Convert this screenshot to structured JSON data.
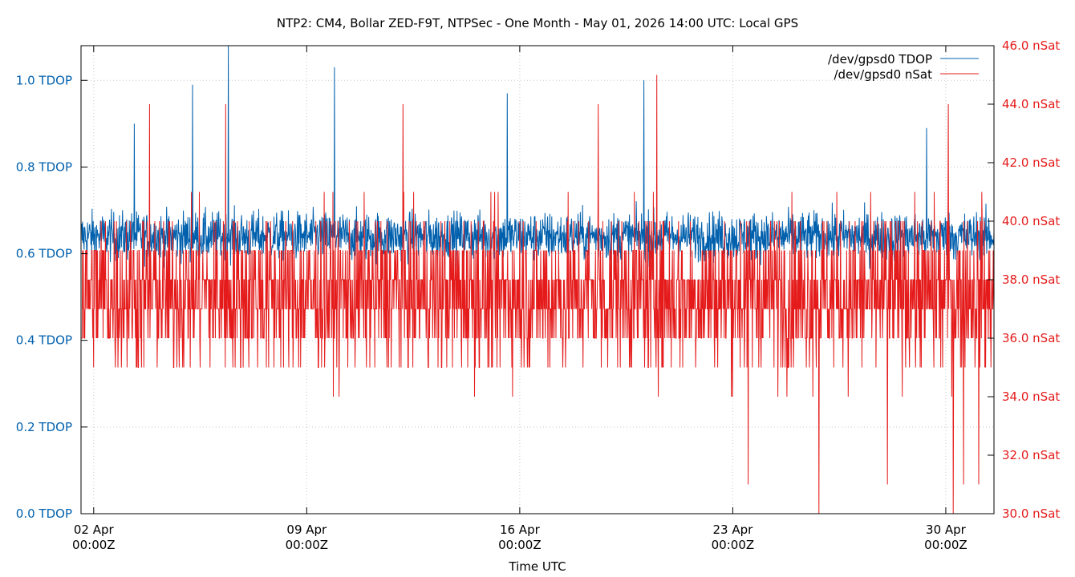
{
  "chart_data": {
    "type": "line",
    "title": "NTP2: CM4, Bollar ZED-F9T, NTPSec - One Month - May 01, 2026 14:00 UTC: Local GPS",
    "xlabel": "Time UTC",
    "x_range": [
      "2026-04-01T14:00Z",
      "2026-05-01T14:00Z"
    ],
    "x_ticks": [
      {
        "date": "2026-04-02T00:00Z",
        "line1": "02 Apr",
        "line2": "00:00Z"
      },
      {
        "date": "2026-04-09T00:00Z",
        "line1": "09 Apr",
        "line2": "00:00Z"
      },
      {
        "date": "2026-04-16T00:00Z",
        "line1": "16 Apr",
        "line2": "00:00Z"
      },
      {
        "date": "2026-04-23T00:00Z",
        "line1": "23 Apr",
        "line2": "00:00Z"
      },
      {
        "date": "2026-04-30T00:00Z",
        "line1": "30 Apr",
        "line2": "00:00Z"
      }
    ],
    "y_left": {
      "range": [
        0,
        1.08
      ],
      "ticks": [
        {
          "value": 0.0,
          "label": "0.0 TDOP"
        },
        {
          "value": 0.2,
          "label": "0.2 TDOP"
        },
        {
          "value": 0.4,
          "label": "0.4 TDOP"
        },
        {
          "value": 0.6,
          "label": "0.6 TDOP"
        },
        {
          "value": 0.8,
          "label": "0.8 TDOP"
        },
        {
          "value": 1.0,
          "label": "1.0 TDOP"
        }
      ]
    },
    "y_right": {
      "range": [
        30,
        46
      ],
      "ticks": [
        {
          "value": 30,
          "label": "30.0 nSat"
        },
        {
          "value": 32,
          "label": "32.0 nSat"
        },
        {
          "value": 34,
          "label": "34.0 nSat"
        },
        {
          "value": 36,
          "label": "36.0 nSat"
        },
        {
          "value": 38,
          "label": "38.0 nSat"
        },
        {
          "value": 40,
          "label": "40.0 nSat"
        },
        {
          "value": 42,
          "label": "42.0 nSat"
        },
        {
          "value": 44,
          "label": "44.0 nSat"
        },
        {
          "value": 46,
          "label": "46.0 nSat"
        }
      ]
    },
    "grid": true,
    "legend_position": "top-right",
    "series": [
      {
        "name": "/dev/gpsd0 TDOP",
        "axis": "left",
        "color": "#0060ad",
        "summary": {
          "typical_min": 0.55,
          "typical_max": 0.75,
          "mean": 0.64,
          "max": 1.08
        },
        "peaks": [
          {
            "date": "2026-04-06T10:00Z",
            "value": 1.08
          },
          {
            "date": "2026-04-09T22:00Z",
            "value": 1.03
          },
          {
            "date": "2026-04-05T06:00Z",
            "value": 0.99
          },
          {
            "date": "2026-04-20T02:00Z",
            "value": 1.0
          },
          {
            "date": "2026-04-15T14:00Z",
            "value": 0.97
          },
          {
            "date": "2026-04-03T08:00Z",
            "value": 0.9
          },
          {
            "date": "2026-04-29T09:00Z",
            "value": 0.89
          }
        ]
      },
      {
        "name": "/dev/gpsd0 nSat",
        "axis": "right",
        "color": "#e51b1b",
        "levels": [
          31,
          32,
          33,
          34,
          35,
          36,
          37,
          38,
          39,
          40,
          41,
          42,
          43,
          44,
          45
        ],
        "summary": {
          "typical_min": 34,
          "typical_max": 41,
          "mean": 37.5,
          "min": 30,
          "max": 45
        },
        "peaks": [
          {
            "date": "2026-04-20T12:00Z",
            "value": 45
          },
          {
            "date": "2026-04-03T20:00Z",
            "value": 44
          },
          {
            "date": "2026-04-06T08:00Z",
            "value": 44
          },
          {
            "date": "2026-04-12T04:00Z",
            "value": 44
          },
          {
            "date": "2026-04-18T14:00Z",
            "value": 44
          },
          {
            "date": "2026-04-30T02:00Z",
            "value": 44
          }
        ],
        "dips": [
          {
            "date": "2026-04-25T20:00Z",
            "value": 30
          },
          {
            "date": "2026-04-30T06:00Z",
            "value": 30
          },
          {
            "date": "2026-04-23T12:00Z",
            "value": 31
          },
          {
            "date": "2026-04-28T02:00Z",
            "value": 31
          },
          {
            "date": "2026-04-30T14:00Z",
            "value": 31
          },
          {
            "date": "2026-05-01T02:00Z",
            "value": 31
          }
        ]
      }
    ]
  }
}
